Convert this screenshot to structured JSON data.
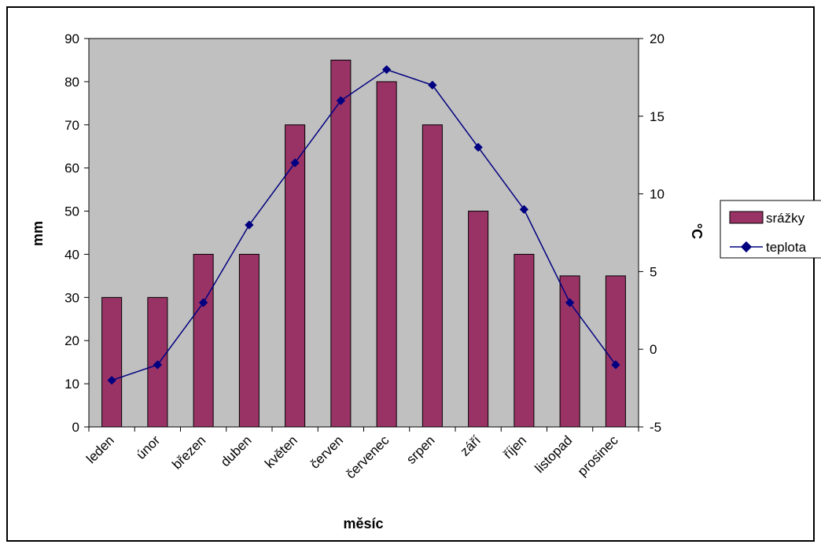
{
  "chart_data": {
    "type": "bar+line",
    "title": "",
    "xlabel": "měsíc",
    "ylabel_left": "mm",
    "ylabel_right": "°C",
    "ylim_left": [
      0,
      90
    ],
    "ylim_right": [
      -5,
      20
    ],
    "yticks_left": [
      0,
      10,
      20,
      30,
      40,
      50,
      60,
      70,
      80,
      90
    ],
    "yticks_right": [
      -5,
      0,
      5,
      10,
      15,
      20
    ],
    "categories": [
      "leden",
      "únor",
      "březen",
      "duben",
      "květen",
      "červen",
      "červenec",
      "srpen",
      "září",
      "říjen",
      "listopad",
      "prosinec"
    ],
    "series": [
      {
        "name": "srážky",
        "type": "bar",
        "axis": "left",
        "color": "#993366",
        "values": [
          30,
          30,
          40,
          40,
          70,
          85,
          80,
          70,
          50,
          40,
          35,
          35
        ]
      },
      {
        "name": "teplota",
        "type": "line",
        "axis": "right",
        "color": "#000080",
        "values": [
          -2,
          -1,
          3,
          8,
          12,
          16,
          18,
          17,
          13,
          9,
          3,
          -1
        ]
      }
    ],
    "plot_background": "#c0c0c0",
    "grid": false,
    "legend_position": "right"
  }
}
